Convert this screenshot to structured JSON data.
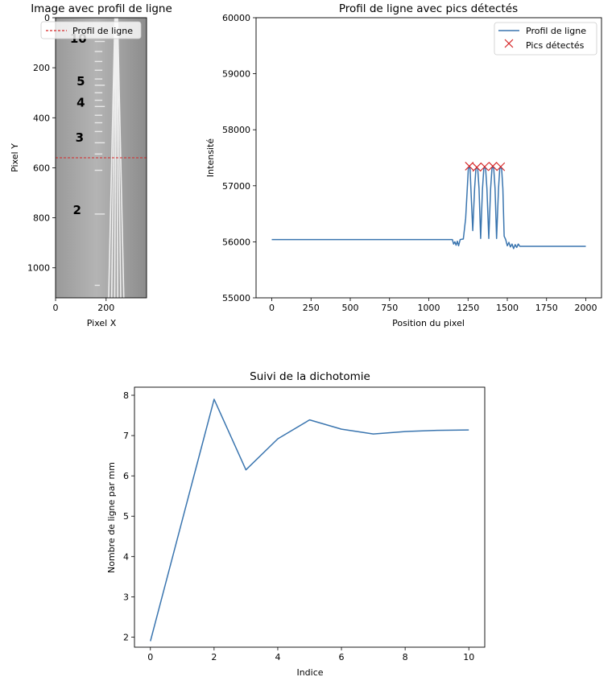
{
  "figure": {
    "colors": {
      "line": "#3a75af",
      "marker": "#d62728",
      "profile_line": "#d62728"
    }
  },
  "chart_data": [
    {
      "type": "image",
      "title": "Image avec profil de ligne",
      "xlabel": "Pixel X",
      "ylabel": "Pixel Y",
      "xlim": [
        0,
        360
      ],
      "ylim": [
        1120,
        0
      ],
      "x_ticks": [
        0,
        200
      ],
      "y_ticks": [
        0,
        200,
        400,
        600,
        800,
        1000
      ],
      "legend": {
        "position": "top-right",
        "entries": [
          "Profil de ligne"
        ]
      },
      "profile_line_y": 560,
      "image_content": {
        "numerals": [
          {
            "text": "10",
            "x": 90,
            "y": 100
          },
          {
            "text": "5",
            "x": 100,
            "y": 270
          },
          {
            "text": "4",
            "x": 100,
            "y": 355
          },
          {
            "text": "3",
            "x": 95,
            "y": 495
          },
          {
            "text": "2",
            "x": 85,
            "y": 785
          }
        ]
      }
    },
    {
      "type": "line",
      "title": "Profil de ligne avec pics détectés",
      "xlabel": "Position du pixel",
      "ylabel": "Intensité",
      "xlim": [
        -100,
        2100
      ],
      "ylim": [
        55000,
        60000
      ],
      "x_ticks": [
        0,
        250,
        500,
        750,
        1000,
        1250,
        1500,
        1750,
        2000
      ],
      "y_ticks": [
        55000,
        56000,
        57000,
        58000,
        59000,
        60000
      ],
      "legend": {
        "position": "top-right",
        "entries": [
          "Profil de ligne",
          "Pics détectés"
        ]
      },
      "series": [
        {
          "name": "Profil de ligne",
          "x": [
            0,
            1150,
            1158,
            1166,
            1174,
            1182,
            1190,
            1200,
            1220,
            1235,
            1245,
            1252,
            1258,
            1263,
            1268,
            1280,
            1292,
            1300,
            1306,
            1312,
            1320,
            1330,
            1342,
            1350,
            1356,
            1362,
            1370,
            1382,
            1394,
            1402,
            1408,
            1414,
            1422,
            1432,
            1444,
            1452,
            1458,
            1464,
            1472,
            1480,
            1490,
            1500,
            1510,
            1520,
            1530,
            1540,
            1550,
            1560,
            1570,
            1580,
            2000
          ],
          "y": [
            56040,
            56040,
            55960,
            56000,
            55940,
            56010,
            55930,
            56040,
            56050,
            56420,
            56950,
            57300,
            57350,
            57300,
            56950,
            56200,
            56950,
            57300,
            57330,
            57300,
            56950,
            56060,
            56950,
            57300,
            57340,
            57300,
            56950,
            56060,
            56950,
            57300,
            57350,
            57300,
            56950,
            56060,
            56950,
            57300,
            57340,
            57300,
            56950,
            56100,
            56040,
            55930,
            55990,
            55910,
            55960,
            55880,
            55950,
            55900,
            55960,
            55920,
            55920
          ]
        },
        {
          "name": "Pics détectés",
          "x": [
            1258,
            1306,
            1356,
            1408,
            1458
          ],
          "y": [
            57350,
            57330,
            57340,
            57350,
            57340
          ]
        }
      ]
    },
    {
      "type": "line",
      "title": "Suivi de la dichotomie",
      "xlabel": "Indice",
      "ylabel": "Nombre de ligne par mm",
      "xlim": [
        -0.5,
        10.5
      ],
      "ylim": [
        1.75,
        8.2
      ],
      "x_ticks": [
        0,
        2,
        4,
        6,
        8,
        10
      ],
      "y_ticks": [
        2,
        3,
        4,
        5,
        6,
        7,
        8
      ],
      "series": [
        {
          "x": [
            0,
            1,
            2,
            3,
            4,
            5,
            6,
            7,
            8,
            9,
            10
          ],
          "y": [
            1.9,
            4.9,
            7.9,
            6.15,
            6.92,
            7.39,
            7.16,
            7.04,
            7.1,
            7.13,
            7.14
          ]
        }
      ]
    }
  ]
}
